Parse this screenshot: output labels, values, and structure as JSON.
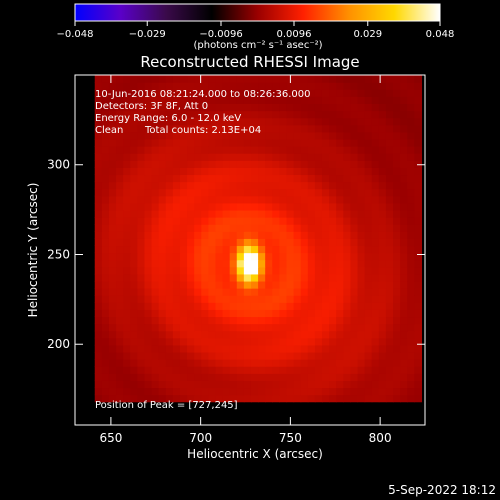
{
  "chart_data": {
    "type": "heatmap",
    "title": "Reconstructed RHESSI Image",
    "xlabel": "Heliocentric X (arcsec)",
    "ylabel": "Heliocentric Y (arcsec)",
    "xlim": [
      630,
      825
    ],
    "ylim": [
      155,
      350
    ],
    "xticks": [
      650,
      700,
      750,
      800
    ],
    "yticks": [
      200,
      250,
      300
    ],
    "image_extent": {
      "x": [
        641,
        823
      ],
      "y": [
        168,
        350
      ]
    },
    "peak": [
      727,
      245
    ],
    "colorbar": {
      "range": [
        -0.048,
        0.048
      ],
      "tick_labels": [
        "−0.048",
        "−0.029",
        "−0.0096",
        "0.0096",
        "0.029",
        "0.048"
      ],
      "ticks": [
        -0.048,
        -0.029,
        -0.0096,
        0.0096,
        0.029,
        0.048
      ],
      "unit_label": "(photons cm⁻² s⁻¹ asec⁻²)",
      "colormap": [
        "#0000ff",
        "#5a00c8",
        "#3a0a4a",
        "#000000",
        "#9a0000",
        "#ff2000",
        "#ff9000",
        "#ffd800",
        "#ffffff"
      ]
    },
    "annotations": {
      "time_range": "10-Jun-2016 08:21:24.000 to 08:26:36.000",
      "detectors": "Detectors: 3F 8F, Att 0",
      "energy_range": "Energy Range: 6.0 - 12.0 keV",
      "clean_label": "Clean",
      "total_counts": "Total counts: 2.13E+04",
      "peak_position": "Position of Peak = [727,245]"
    },
    "footer_date": "5-Sep-2022 18:12"
  }
}
